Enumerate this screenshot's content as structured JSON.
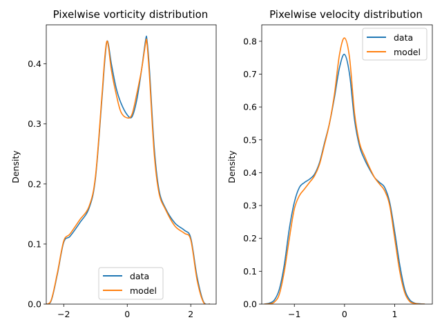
{
  "chart_data": [
    {
      "type": "line",
      "title": "Pixelwise vorticity distribution",
      "xlabel": "",
      "ylabel": "Density",
      "xlim": [
        -2.55,
        2.8
      ],
      "ylim": [
        0,
        0.465
      ],
      "xticks": [
        -2,
        0,
        2
      ],
      "yticks": [
        0.0,
        0.1,
        0.2,
        0.3,
        0.4
      ],
      "legend": "lower center",
      "series": [
        {
          "name": "data",
          "color": "#1f77b4",
          "x": [
            -2.6,
            -2.4,
            -2.2,
            -2.0,
            -1.8,
            -1.5,
            -1.2,
            -1.0,
            -0.8,
            -0.7,
            -0.62,
            -0.5,
            -0.35,
            -0.2,
            0.0,
            0.15,
            0.3,
            0.45,
            0.58,
            0.62,
            0.7,
            0.85,
            1.0,
            1.2,
            1.5,
            1.8,
            2.0,
            2.2,
            2.4,
            2.6
          ],
          "y": [
            0.0,
            0.005,
            0.05,
            0.103,
            0.113,
            0.135,
            0.16,
            0.21,
            0.34,
            0.41,
            0.438,
            0.4,
            0.36,
            0.335,
            0.315,
            0.312,
            0.34,
            0.39,
            0.44,
            0.44,
            0.39,
            0.26,
            0.19,
            0.16,
            0.135,
            0.123,
            0.11,
            0.045,
            0.004,
            0.0
          ]
        },
        {
          "name": "model",
          "color": "#ff7f0e",
          "x": [
            -2.6,
            -2.4,
            -2.2,
            -2.0,
            -1.8,
            -1.5,
            -1.2,
            -1.0,
            -0.8,
            -0.7,
            -0.62,
            -0.5,
            -0.35,
            -0.2,
            0.0,
            0.15,
            0.3,
            0.45,
            0.58,
            0.62,
            0.7,
            0.85,
            1.0,
            1.2,
            1.5,
            1.8,
            2.0,
            2.2,
            2.4,
            2.6
          ],
          "y": [
            0.0,
            0.006,
            0.052,
            0.105,
            0.117,
            0.14,
            0.163,
            0.213,
            0.345,
            0.415,
            0.437,
            0.39,
            0.35,
            0.32,
            0.31,
            0.316,
            0.35,
            0.39,
            0.435,
            0.435,
            0.38,
            0.25,
            0.185,
            0.158,
            0.13,
            0.118,
            0.107,
            0.04,
            0.003,
            0.0
          ]
        }
      ]
    },
    {
      "type": "line",
      "title": "Pixelwise velocity distribution",
      "xlabel": "",
      "ylabel": "Density",
      "xlim": [
        -1.65,
        1.75
      ],
      "ylim": [
        0,
        0.85
      ],
      "xticks": [
        -1,
        0,
        1
      ],
      "yticks": [
        0.0,
        0.1,
        0.2,
        0.3,
        0.4,
        0.5,
        0.6,
        0.7,
        0.8
      ],
      "legend": "upper right",
      "series": [
        {
          "name": "data",
          "color": "#1f77b4",
          "x": [
            -1.6,
            -1.5,
            -1.4,
            -1.3,
            -1.2,
            -1.1,
            -1.0,
            -0.9,
            -0.8,
            -0.7,
            -0.6,
            -0.5,
            -0.4,
            -0.3,
            -0.2,
            -0.1,
            0.0,
            0.1,
            0.2,
            0.3,
            0.4,
            0.5,
            0.6,
            0.7,
            0.8,
            0.9,
            1.0,
            1.1,
            1.2,
            1.3,
            1.4,
            1.5,
            1.6
          ],
          "y": [
            0.0,
            0.003,
            0.012,
            0.045,
            0.12,
            0.23,
            0.31,
            0.355,
            0.37,
            0.38,
            0.395,
            0.43,
            0.49,
            0.55,
            0.63,
            0.72,
            0.76,
            0.7,
            0.56,
            0.48,
            0.44,
            0.41,
            0.385,
            0.37,
            0.355,
            0.31,
            0.22,
            0.12,
            0.045,
            0.013,
            0.003,
            0.001,
            0.0
          ]
        },
        {
          "name": "model",
          "color": "#ff7f0e",
          "x": [
            -1.6,
            -1.5,
            -1.4,
            -1.3,
            -1.2,
            -1.1,
            -1.0,
            -0.9,
            -0.8,
            -0.7,
            -0.6,
            -0.5,
            -0.4,
            -0.3,
            -0.2,
            -0.1,
            0.0,
            0.1,
            0.2,
            0.3,
            0.4,
            0.5,
            0.6,
            0.7,
            0.8,
            0.9,
            1.0,
            1.1,
            1.2,
            1.3,
            1.4,
            1.5,
            1.6
          ],
          "y": [
            0.0,
            0.001,
            0.006,
            0.03,
            0.1,
            0.2,
            0.29,
            0.33,
            0.35,
            0.37,
            0.39,
            0.425,
            0.485,
            0.55,
            0.64,
            0.76,
            0.81,
            0.75,
            0.58,
            0.49,
            0.45,
            0.415,
            0.385,
            0.365,
            0.345,
            0.3,
            0.2,
            0.1,
            0.035,
            0.008,
            0.002,
            0.0,
            0.0
          ]
        }
      ]
    }
  ]
}
